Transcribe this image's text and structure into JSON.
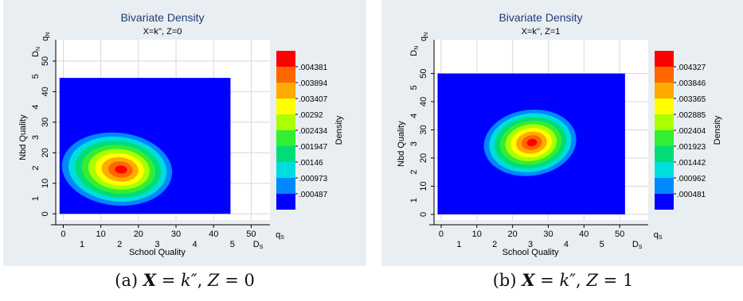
{
  "chart_data": [
    {
      "type": "heatmap",
      "title": "Bivariate Density",
      "subtitle": "X=k'', Z=0",
      "xlabel": "School Quality",
      "ylabel": "Nbd Quality",
      "colorbar_label": "Density",
      "x_axis_primary": {
        "ticks": [
          0,
          10,
          20,
          30,
          40,
          50
        ],
        "tick_labels": [
          "0",
          "10",
          "20",
          "30",
          "40",
          "50"
        ],
        "range": [
          -2,
          55
        ]
      },
      "x_axis_secondary": {
        "ticks": [
          1,
          2,
          3,
          4,
          5
        ],
        "tick_labels": [
          "1",
          "2",
          "3",
          "4",
          "5"
        ],
        "end_labels": [
          "D",
          "q"
        ],
        "end_subscripts": [
          "S",
          "S"
        ]
      },
      "y_axis_primary": {
        "ticks": [
          0,
          10,
          20,
          30,
          40,
          50
        ],
        "tick_labels": [
          "0",
          "10",
          "20",
          "30",
          "40",
          "50"
        ],
        "range": [
          -2,
          57
        ]
      },
      "y_axis_secondary": {
        "ticks": [
          1,
          2,
          3,
          4,
          5
        ],
        "tick_labels": [
          "1",
          "2",
          "3",
          "4",
          "5"
        ],
        "end_labels": [
          "D",
          "q"
        ],
        "end_subscripts": [
          "N",
          "N"
        ]
      },
      "grid": true,
      "data_region": {
        "x": [
          -1,
          44.5
        ],
        "y": [
          0,
          44.5
        ]
      },
      "peak": {
        "x": 15.5,
        "y": 14.5,
        "density": 0.0047
      },
      "colorbar_levels": [
        ".004381",
        ".003894",
        ".003407",
        ".00292",
        ".002434",
        ".001947",
        ".00146",
        ".000973",
        ".000487"
      ]
    },
    {
      "type": "heatmap",
      "title": "Bivariate Density",
      "subtitle": "X=k'', Z=1",
      "xlabel": "School Quality",
      "ylabel": "Nbd Quality",
      "colorbar_label": "Density",
      "x_axis_primary": {
        "ticks": [
          0,
          10,
          20,
          30,
          40,
          50
        ],
        "tick_labels": [
          "0",
          "10",
          "20",
          "30",
          "40",
          "50"
        ],
        "range": [
          -2,
          58
        ]
      },
      "x_axis_secondary": {
        "ticks": [
          1,
          2,
          3,
          4,
          5
        ],
        "tick_labels": [
          "1",
          "2",
          "3",
          "4",
          "5"
        ],
        "end_labels": [
          "D",
          "q"
        ],
        "end_subscripts": [
          "S",
          "S"
        ]
      },
      "y_axis_primary": {
        "ticks": [
          0,
          10,
          20,
          30,
          40,
          50
        ],
        "tick_labels": [
          "0",
          "10",
          "20",
          "30",
          "40",
          "50"
        ],
        "range": [
          -2,
          62
        ]
      },
      "y_axis_secondary": {
        "ticks": [
          1,
          2,
          3,
          4,
          5
        ],
        "tick_labels": [
          "1",
          "2",
          "3",
          "4",
          "5"
        ],
        "end_labels": [
          "D",
          "q"
        ],
        "end_subscripts": [
          "N",
          "N"
        ]
      },
      "grid": true,
      "data_region": {
        "x": [
          -1,
          51.5
        ],
        "y": [
          0,
          50
        ]
      },
      "peak": {
        "x": 25.5,
        "y": 25.5,
        "density": 0.0046
      },
      "colorbar_levels": [
        ".004327",
        ".003846",
        ".003365",
        ".002885",
        ".002404",
        ".001923",
        ".001442",
        ".000962",
        ".000481"
      ]
    }
  ],
  "colors": {
    "panel_bg": "#e9eef2",
    "palette": [
      "#ff0000",
      "#ff6600",
      "#ffaa00",
      "#ffff00",
      "#aaff00",
      "#33ee33",
      "#00dd77",
      "#00dddd",
      "#0088ff",
      "#0000ff"
    ]
  },
  "captions": [
    {
      "label": "(a) ",
      "bold": "X",
      "eq1": " = ",
      "math1": "k″",
      "sep": ", ",
      "math2": "Z",
      "eq2": " = ",
      "val": "0"
    },
    {
      "label": "(b) ",
      "bold": "X",
      "eq1": " = ",
      "math1": "k″",
      "sep": ", ",
      "math2": "Z",
      "eq2": " = ",
      "val": "1"
    }
  ]
}
